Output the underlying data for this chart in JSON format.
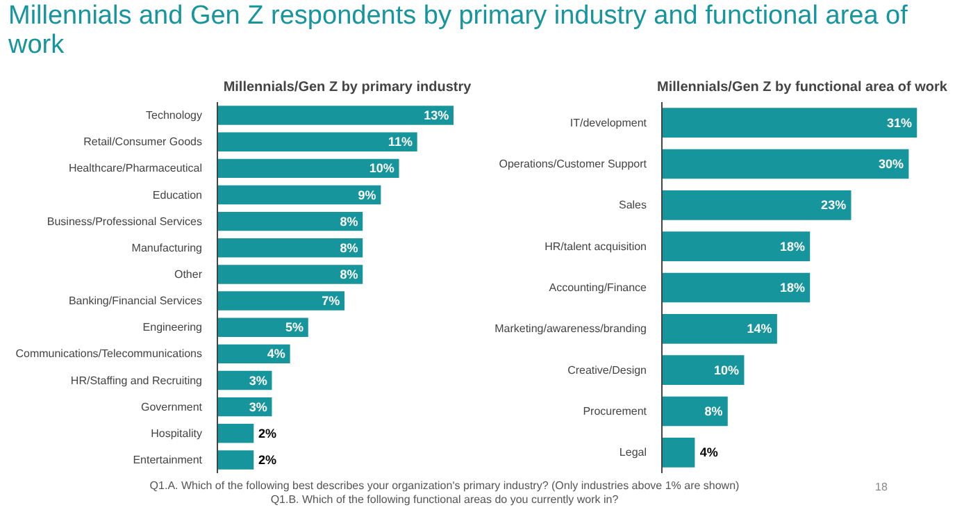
{
  "chart_data": [
    {
      "type": "other",
      "title": "Millennials and Gen Z respondents by primary industry and functional area of work",
      "annotations": [
        "Q1.A. Which of the following best describes your organization's primary industry? (Only industries above 1% are shown)",
        "Q1.B. Which of the following functional areas do you currently work in?",
        "18"
      ]
    },
    {
      "type": "bar",
      "orientation": "horizontal",
      "title": "Millennials/Gen Z by primary industry",
      "categories": [
        "Technology",
        "Retail/Consumer Goods",
        "Healthcare/Pharmaceutical",
        "Education",
        "Business/Professional Services",
        "Manufacturing",
        "Other",
        "Banking/Financial Services",
        "Engineering",
        "Communications/Telecommunications",
        "HR/Staffing and Recruiting",
        "Government",
        "Hospitality",
        "Entertainment"
      ],
      "color": "#17959c",
      "values": [
        13,
        11,
        10,
        9,
        8,
        8,
        8,
        7,
        5,
        4,
        3,
        3,
        2,
        2
      ],
      "value_labels": [
        "13%",
        "11%",
        "10%",
        "9%",
        "8%",
        "8%",
        "8%",
        "7%",
        "5%",
        "4%",
        "3%",
        "3%",
        "2%",
        "2%"
      ]
    },
    {
      "type": "bar",
      "orientation": "horizontal",
      "title": "Millennials/Gen Z by functional area of work",
      "categories": [
        "IT/development",
        "Operations/Customer Support",
        "Sales",
        "HR/talent acquisition",
        "Accounting/Finance",
        "Marketing/awareness/branding",
        "Creative/Design",
        "Procurement",
        "Legal"
      ],
      "color": "#17959c",
      "values": [
        31,
        30,
        23,
        18,
        18,
        14,
        10,
        8,
        4
      ],
      "value_labels": [
        "31%",
        "30%",
        "23%",
        "18%",
        "18%",
        "14%",
        "10%",
        "8%",
        "4%"
      ]
    }
  ]
}
